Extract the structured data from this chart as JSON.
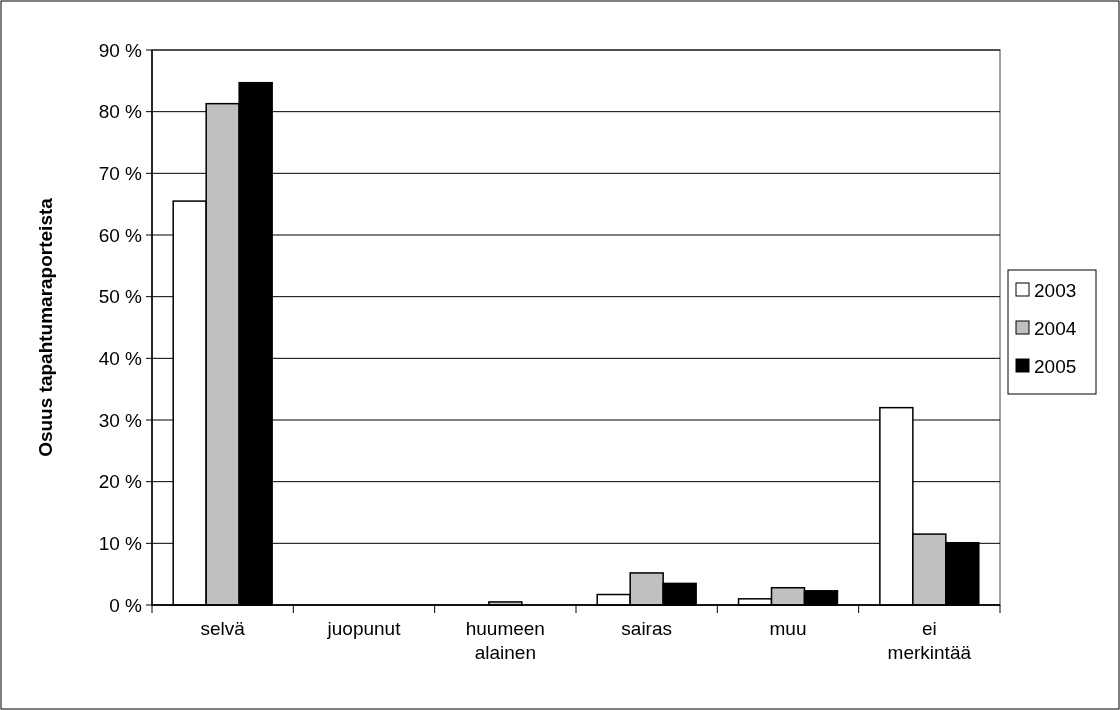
{
  "chart_data": {
    "type": "bar",
    "ylabel": "Osuus tapahtumaraporteista",
    "categories": [
      "selvä",
      "juopunut",
      "huumeen alainen",
      "sairas",
      "muu",
      "ei merkintää"
    ],
    "series": [
      {
        "name": "2003",
        "color": "#ffffff",
        "values": [
          65.5,
          0,
          0,
          1.7,
          1.0,
          32
        ]
      },
      {
        "name": "2004",
        "color": "#c0c0c0",
        "values": [
          81.3,
          0,
          0.5,
          5.2,
          2.8,
          11.5
        ]
      },
      {
        "name": "2005",
        "color": "#000000",
        "values": [
          84.7,
          0,
          0,
          3.5,
          2.3,
          10.1
        ]
      }
    ],
    "ylim": [
      0,
      90
    ],
    "yticks": [
      {
        "value": 0,
        "label": "0 %"
      },
      {
        "value": 10,
        "label": "10 %"
      },
      {
        "value": 20,
        "label": "20 %"
      },
      {
        "value": 30,
        "label": "30 %"
      },
      {
        "value": 40,
        "label": "40 %"
      },
      {
        "value": 50,
        "label": "50 %"
      },
      {
        "value": 60,
        "label": "60 %"
      },
      {
        "value": 70,
        "label": "70 %"
      },
      {
        "value": 80,
        "label": "80 %"
      },
      {
        "value": 90,
        "label": "90 %"
      }
    ],
    "grid": "y",
    "legend": "right"
  }
}
